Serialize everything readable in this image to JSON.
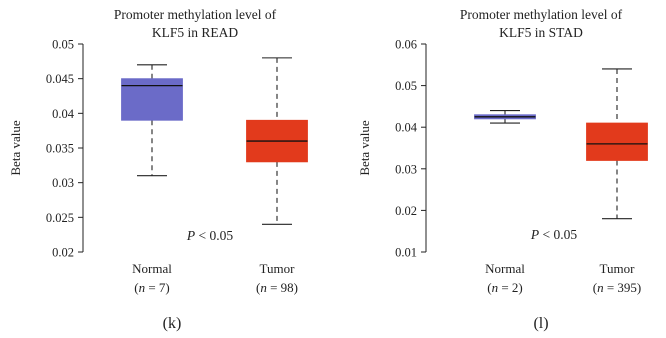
{
  "chart_data": [
    {
      "type": "box",
      "panel_label": "(k)",
      "title_lines": [
        "Promoter methylation level of",
        "KLF5 in READ"
      ],
      "ylabel": "Beta value",
      "ylim": [
        0.02,
        0.05
      ],
      "yticks": [
        0.02,
        0.025,
        0.03,
        0.035,
        0.04,
        0.045,
        0.05
      ],
      "ytick_labels": [
        "0.02",
        "0.025",
        "0.03",
        "0.035",
        "0.04",
        "0.045",
        "0.05"
      ],
      "annotation": {
        "italic": "P",
        "rest": " < 0.05"
      },
      "groups": [
        {
          "name": "Normal",
          "n_label": {
            "open": "(",
            "var": "n",
            "rest": " = 7)"
          },
          "color": "#6b6bc8",
          "min": 0.031,
          "q1": 0.039,
          "median": 0.044,
          "q3": 0.045,
          "max": 0.047
        },
        {
          "name": "Tumor",
          "n_label": {
            "open": "(",
            "var": "n",
            "rest": " = 98)"
          },
          "color": "#e23a1c",
          "min": 0.024,
          "q1": 0.033,
          "median": 0.036,
          "q3": 0.039,
          "max": 0.048
        }
      ]
    },
    {
      "type": "box",
      "panel_label": "(l)",
      "title_lines": [
        "Promoter methylation level of",
        "KLF5 in STAD"
      ],
      "ylabel": "Beta value",
      "ylim": [
        0.01,
        0.06
      ],
      "yticks": [
        0.01,
        0.02,
        0.03,
        0.04,
        0.05,
        0.06
      ],
      "ytick_labels": [
        "0.01",
        "0.02",
        "0.03",
        "0.04",
        "0.05",
        "0.06"
      ],
      "annotation": {
        "italic": "P",
        "rest": " < 0.05"
      },
      "groups": [
        {
          "name": "Normal",
          "n_label": {
            "open": "(",
            "var": "n",
            "rest": " = 2)"
          },
          "color": "#6b6bc8",
          "min": 0.041,
          "q1": 0.042,
          "median": 0.0425,
          "q3": 0.043,
          "max": 0.044
        },
        {
          "name": "Tumor",
          "n_label": {
            "open": "(",
            "var": "n",
            "rest": " = 395)"
          },
          "color": "#e23a1c",
          "min": 0.018,
          "q1": 0.032,
          "median": 0.036,
          "q3": 0.041,
          "max": 0.054
        }
      ]
    }
  ]
}
